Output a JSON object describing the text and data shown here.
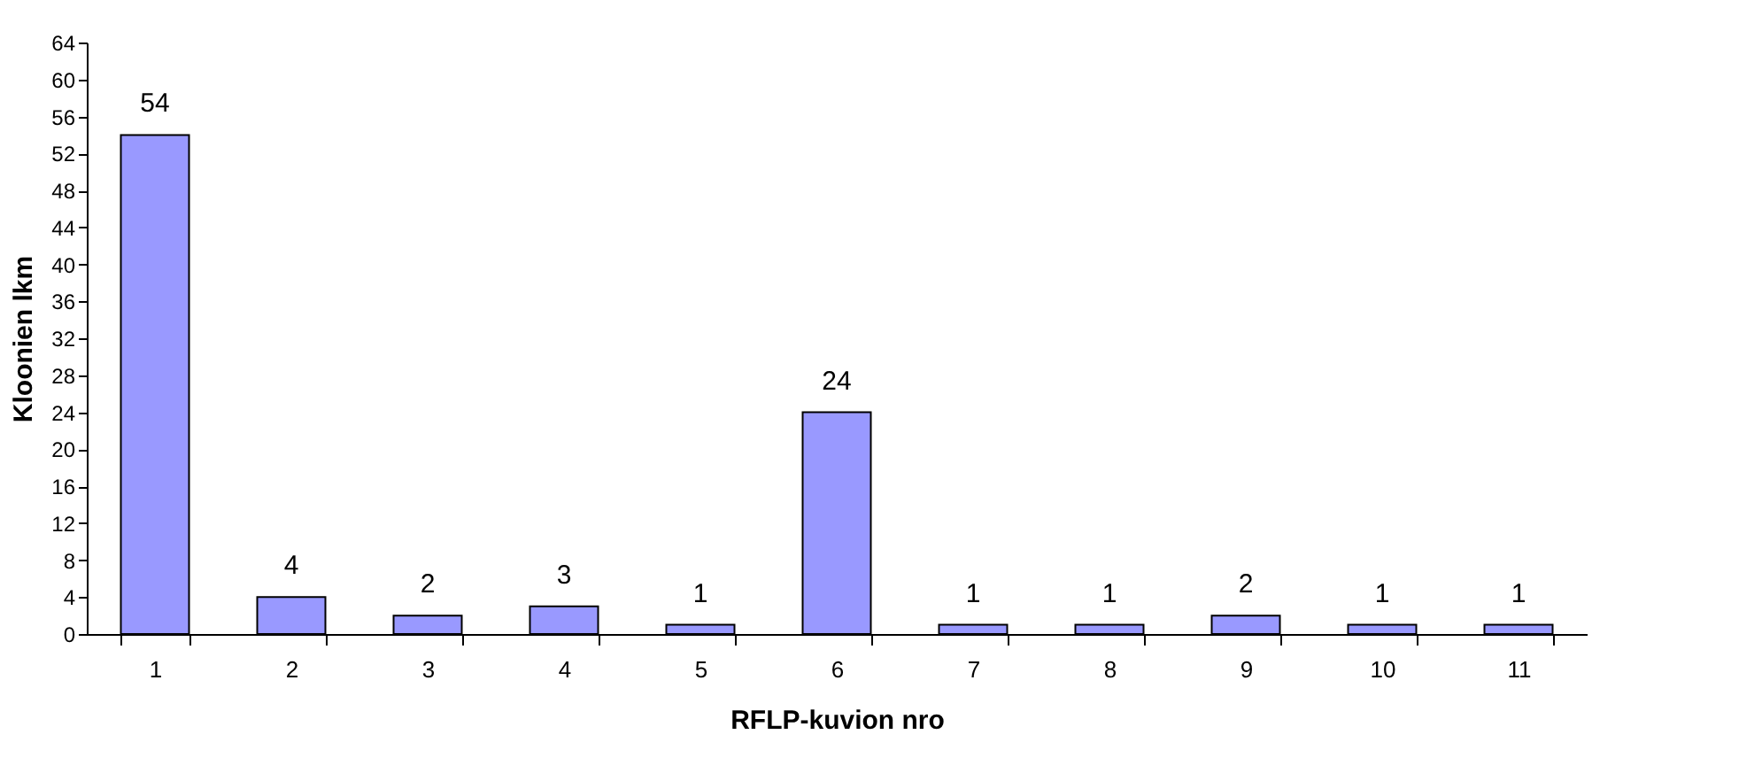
{
  "chart_data": {
    "type": "bar",
    "xlabel": "RFLP-kuvion nro",
    "ylabel": "Kloonien lkm",
    "categories": [
      "1",
      "2",
      "3",
      "4",
      "5",
      "6",
      "7",
      "8",
      "9",
      "10",
      "11"
    ],
    "values": [
      54,
      4,
      2,
      3,
      1,
      24,
      1,
      1,
      2,
      1,
      1
    ],
    "color": "#9999ff",
    "ylim": [
      0,
      64
    ],
    "yticks": [
      0,
      4,
      8,
      12,
      16,
      20,
      24,
      28,
      32,
      36,
      40,
      44,
      48,
      52,
      56,
      60,
      64
    ],
    "data_labels": true
  }
}
